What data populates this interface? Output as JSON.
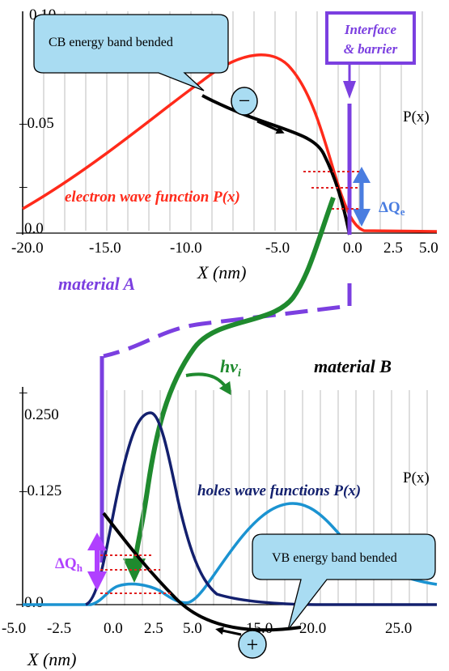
{
  "top_plot": {
    "y_ticks": [
      "0.10",
      "–0.05",
      "0.0"
    ],
    "y_minor_tick": "–",
    "x_ticks": [
      "-20.0",
      "-15.0",
      "-10.0",
      "-5.0",
      "0.0",
      "2.5",
      "5.0"
    ],
    "x_label": "X (nm)",
    "p_label": "P(x)",
    "callout": "CB energy band bended",
    "curve_label": "electron wave function P(x)",
    "interface_label_1": "Interface",
    "interface_label_2": "& barrier",
    "delta_q": "ΔQ",
    "delta_q_sub": "e",
    "electron_symbol": "−"
  },
  "bottom_plot": {
    "y_ticks": [
      "0.250",
      "–0.125",
      "0.0"
    ],
    "y_minor_tick": "–",
    "x_ticks": [
      "-5.0",
      "-2.5",
      "0.0",
      "2.5",
      "5.0",
      "15.0",
      "20.0",
      "25.0"
    ],
    "x_label": "X (nm)",
    "p_label": "P(x)",
    "callout": "VB energy band bended",
    "curve_label": "holes wave functions P(x)",
    "delta_q": "ΔQ",
    "delta_q_sub": "h",
    "hole_symbol": "+"
  },
  "labels": {
    "material_a": "material A",
    "material_b": "material B",
    "photon": "hν",
    "photon_sub": "i"
  },
  "colors": {
    "electron_curve": "#ff2a1a",
    "band_curve": "#000000",
    "interface": "#7b3fe0",
    "arrow_blue": "#4a7de0",
    "photon_green": "#1f8a2e",
    "hole_dark": "#13206e",
    "hole_light": "#1b93d1",
    "callout_fill": "#a9dcf2",
    "delta_qh": "#b040ff",
    "grid": "#bdbdbd"
  }
}
